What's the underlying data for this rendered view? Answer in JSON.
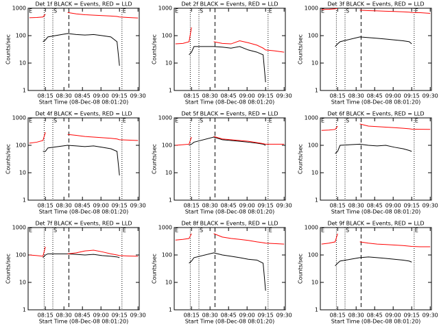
{
  "chart_data": [
    {
      "type": "line",
      "title": "Det 1f BLACK = Events, RED = LLD",
      "x_label": "Start Time (08-Dec-08 08:01:20)",
      "y_label": "Counts/sec",
      "log_y": true,
      "xlim": [
        481,
        571
      ],
      "ylim": [
        1,
        1000
      ],
      "xticks": [
        {
          "value": 495,
          "label": "08:15"
        },
        {
          "value": 510,
          "label": "08:30"
        },
        {
          "value": 525,
          "label": "08:45"
        },
        {
          "value": 540,
          "label": "09:00"
        },
        {
          "value": 555,
          "label": "09:15"
        },
        {
          "value": 570,
          "label": "09:30"
        }
      ],
      "yticks": [
        1,
        10,
        100,
        1000
      ],
      "x": [
        482,
        488,
        493,
        495,
        497,
        513,
        520,
        527,
        534,
        541,
        548,
        553,
        555,
        562,
        570
      ],
      "series": [
        {
          "color": "#000000",
          "values": [
            null,
            null,
            60,
            70,
            90,
            120,
            110,
            105,
            110,
            100,
            90,
            60,
            8,
            null,
            null
          ]
        },
        {
          "color": "#ff0000",
          "values": [
            450,
            460,
            480,
            600,
            null,
            700,
            620,
            580,
            560,
            540,
            520,
            500,
            480,
            460,
            440
          ]
        }
      ],
      "vlines": [
        494,
        501,
        514,
        557
      ],
      "vline_styles": [
        "dotted",
        "dotted",
        "dashed",
        "dotted"
      ],
      "annotations": [
        {
          "text": "E",
          "x": 481
        },
        {
          "text": "S",
          "x": 501
        },
        {
          "text": "E",
          "x": 557
        }
      ]
    },
    {
      "type": "line",
      "title": "Det 2f BLACK = Events, RED = LLD",
      "x_label": "Start Time (08-Dec-08 08:01:20)",
      "y_label": "Counts/sec",
      "log_y": true,
      "xlim": [
        481,
        571
      ],
      "ylim": [
        1,
        1000
      ],
      "xticks": [
        {
          "value": 495,
          "label": "08:15"
        },
        {
          "value": 510,
          "label": "08:30"
        },
        {
          "value": 525,
          "label": "08:45"
        },
        {
          "value": 540,
          "label": "09:00"
        },
        {
          "value": 555,
          "label": "09:15"
        },
        {
          "value": 570,
          "label": "09:30"
        }
      ],
      "yticks": [
        1,
        10,
        100,
        1000
      ],
      "x": [
        482,
        488,
        493,
        495,
        497,
        513,
        520,
        527,
        534,
        541,
        548,
        553,
        555,
        562,
        570
      ],
      "series": [
        {
          "color": "#000000",
          "values": [
            null,
            null,
            20,
            25,
            40,
            40,
            38,
            35,
            40,
            30,
            25,
            20,
            2,
            null,
            null
          ]
        },
        {
          "color": "#ff0000",
          "values": [
            50,
            52,
            60,
            200,
            null,
            60,
            52,
            50,
            65,
            55,
            45,
            35,
            30,
            28,
            25
          ]
        }
      ],
      "vlines": [
        494,
        501,
        514,
        557
      ],
      "vline_styles": [
        "dotted",
        "dotted",
        "dashed",
        "dotted"
      ],
      "annotations": [
        {
          "text": "E",
          "x": 481
        },
        {
          "text": "S",
          "x": 501
        },
        {
          "text": "E",
          "x": 557
        }
      ]
    },
    {
      "type": "line",
      "title": "Det 3f BLACK = Events, RED = LLD",
      "x_label": "Start Time (08-Dec-08 08:01:20)",
      "y_label": "Counts/sec",
      "log_y": true,
      "xlim": [
        481,
        571
      ],
      "ylim": [
        1,
        1000
      ],
      "xticks": [
        {
          "value": 495,
          "label": "08:15"
        },
        {
          "value": 510,
          "label": "08:30"
        },
        {
          "value": 525,
          "label": "08:45"
        },
        {
          "value": 540,
          "label": "09:00"
        },
        {
          "value": 555,
          "label": "09:15"
        },
        {
          "value": 570,
          "label": "09:30"
        }
      ],
      "yticks": [
        1,
        10,
        100,
        1000
      ],
      "x": [
        482,
        488,
        493,
        495,
        497,
        513,
        520,
        527,
        534,
        541,
        548,
        553,
        555,
        562,
        570
      ],
      "series": [
        {
          "color": "#000000",
          "values": [
            null,
            null,
            40,
            50,
            60,
            90,
            85,
            80,
            75,
            70,
            65,
            60,
            50,
            null,
            null
          ]
        },
        {
          "color": "#ff0000",
          "values": [
            900,
            920,
            950,
            1000,
            null,
            850,
            820,
            800,
            780,
            760,
            740,
            720,
            700,
            690,
            650
          ]
        }
      ],
      "vlines": [
        494,
        501,
        514,
        557
      ],
      "vline_styles": [
        "dotted",
        "dotted",
        "dashed",
        "dotted"
      ],
      "annotations": [
        {
          "text": "E",
          "x": 481
        },
        {
          "text": "S",
          "x": 501
        },
        {
          "text": "E",
          "x": 557
        }
      ]
    },
    {
      "type": "line",
      "title": "Det 4f BLACK = Events, RED = LLD",
      "x_label": "Start Time (08-Dec-08 08:01:20)",
      "y_label": "Counts/sec",
      "log_y": true,
      "xlim": [
        481,
        571
      ],
      "ylim": [
        1,
        1000
      ],
      "xticks": [
        {
          "value": 495,
          "label": "08:15"
        },
        {
          "value": 510,
          "label": "08:30"
        },
        {
          "value": 525,
          "label": "08:45"
        },
        {
          "value": 540,
          "label": "09:00"
        },
        {
          "value": 555,
          "label": "09:15"
        },
        {
          "value": 570,
          "label": "09:30"
        }
      ],
      "yticks": [
        1,
        10,
        100,
        1000
      ],
      "x": [
        482,
        488,
        493,
        495,
        497,
        513,
        520,
        527,
        534,
        541,
        548,
        553,
        555,
        562,
        570
      ],
      "series": [
        {
          "color": "#000000",
          "values": [
            null,
            null,
            60,
            60,
            80,
            100,
            95,
            90,
            95,
            85,
            75,
            60,
            8,
            null,
            null
          ]
        },
        {
          "color": "#ff0000",
          "values": [
            120,
            130,
            150,
            300,
            null,
            250,
            230,
            210,
            200,
            190,
            180,
            170,
            160,
            155,
            150
          ]
        }
      ],
      "vlines": [
        494,
        501,
        514,
        557
      ],
      "vline_styles": [
        "dotted",
        "dotted",
        "dashed",
        "dotted"
      ],
      "annotations": [
        {
          "text": "E",
          "x": 481
        },
        {
          "text": "S",
          "x": 501
        },
        {
          "text": "E",
          "x": 557
        }
      ]
    },
    {
      "type": "line",
      "title": "Det 5f BLACK = Events, RED = LLD",
      "x_label": "Start Time (08-Dec-08 08:01:20)",
      "y_label": "Counts/sec",
      "log_y": true,
      "xlim": [
        481,
        571
      ],
      "ylim": [
        1,
        1000
      ],
      "xticks": [
        {
          "value": 495,
          "label": "08:15"
        },
        {
          "value": 510,
          "label": "08:30"
        },
        {
          "value": 525,
          "label": "08:45"
        },
        {
          "value": 540,
          "label": "09:00"
        },
        {
          "value": 555,
          "label": "09:15"
        },
        {
          "value": 570,
          "label": "09:30"
        }
      ],
      "yticks": [
        1,
        10,
        100,
        1000
      ],
      "x": [
        482,
        488,
        493,
        495,
        497,
        513,
        520,
        527,
        534,
        541,
        548,
        553,
        555,
        562,
        570
      ],
      "series": [
        {
          "color": "#000000",
          "values": [
            null,
            null,
            100,
            110,
            130,
            200,
            160,
            150,
            140,
            130,
            120,
            110,
            100,
            null,
            null
          ]
        },
        {
          "color": "#ff0000",
          "values": [
            100,
            105,
            110,
            200,
            null,
            210,
            170,
            160,
            150,
            140,
            125,
            115,
            110,
            110,
            110
          ]
        }
      ],
      "vlines": [
        494,
        501,
        514,
        557
      ],
      "vline_styles": [
        "dotted",
        "dotted",
        "dashed",
        "dotted"
      ],
      "annotations": [
        {
          "text": "E",
          "x": 481
        },
        {
          "text": "S",
          "x": 501
        },
        {
          "text": "E",
          "x": 557
        }
      ]
    },
    {
      "type": "line",
      "title": "Det 6f BLACK = Events, RED = LLD",
      "x_label": "Start Time (08-Dec-08 08:01:20)",
      "y_label": "Counts/sec",
      "log_y": true,
      "xlim": [
        481,
        571
      ],
      "ylim": [
        1,
        1000
      ],
      "xticks": [
        {
          "value": 495,
          "label": "08:15"
        },
        {
          "value": 510,
          "label": "08:30"
        },
        {
          "value": 525,
          "label": "08:45"
        },
        {
          "value": 540,
          "label": "09:00"
        },
        {
          "value": 555,
          "label": "09:15"
        },
        {
          "value": 570,
          "label": "09:30"
        }
      ],
      "yticks": [
        1,
        10,
        100,
        1000
      ],
      "x": [
        482,
        488,
        493,
        495,
        497,
        513,
        520,
        527,
        534,
        541,
        548,
        553,
        555,
        562,
        570
      ],
      "series": [
        {
          "color": "#000000",
          "values": [
            null,
            null,
            50,
            60,
            100,
            110,
            100,
            95,
            100,
            85,
            75,
            65,
            60,
            null,
            null
          ]
        },
        {
          "color": "#ff0000",
          "values": [
            350,
            360,
            380,
            500,
            null,
            600,
            500,
            480,
            460,
            440,
            420,
            400,
            390,
            385,
            380
          ]
        }
      ],
      "vlines": [
        494,
        501,
        514,
        557
      ],
      "vline_styles": [
        "dotted",
        "dotted",
        "dashed",
        "dotted"
      ],
      "annotations": [
        {
          "text": "E",
          "x": 481
        },
        {
          "text": "S",
          "x": 501
        },
        {
          "text": "E",
          "x": 557
        }
      ]
    },
    {
      "type": "line",
      "title": "Det 7f BLACK = Events, RED = LLD",
      "x_label": "Start Time (08-Dec-08 08:01:20)",
      "y_label": "Counts/sec",
      "log_y": true,
      "xlim": [
        481,
        571
      ],
      "ylim": [
        1,
        1000
      ],
      "xticks": [
        {
          "value": 495,
          "label": "08:15"
        },
        {
          "value": 510,
          "label": "08:30"
        },
        {
          "value": 525,
          "label": "08:45"
        },
        {
          "value": 540,
          "label": "09:00"
        },
        {
          "value": 555,
          "label": "09:15"
        },
        {
          "value": 570,
          "label": "09:30"
        }
      ],
      "yticks": [
        1,
        10,
        100,
        1000
      ],
      "x": [
        482,
        488,
        493,
        495,
        497,
        513,
        520,
        527,
        534,
        541,
        548,
        553,
        555,
        562,
        570
      ],
      "series": [
        {
          "color": "#000000",
          "values": [
            null,
            null,
            80,
            100,
            110,
            110,
            105,
            100,
            105,
            95,
            90,
            85,
            80,
            null,
            null
          ]
        },
        {
          "color": "#ff0000",
          "values": [
            100,
            95,
            90,
            200,
            null,
            110,
            120,
            140,
            150,
            130,
            110,
            100,
            95,
            92,
            90
          ]
        }
      ],
      "vlines": [
        494,
        501,
        514,
        557
      ],
      "vline_styles": [
        "dotted",
        "dotted",
        "dashed",
        "dotted"
      ],
      "annotations": [
        {
          "text": "E",
          "x": 481
        },
        {
          "text": "S",
          "x": 501
        },
        {
          "text": "E",
          "x": 557
        }
      ]
    },
    {
      "type": "line",
      "title": "Det 8f BLACK = Events, RED = LLD",
      "x_label": "Start Time (08-Dec-08 08:01:20)",
      "y_label": "Counts/sec",
      "log_y": true,
      "xlim": [
        481,
        571
      ],
      "ylim": [
        1,
        1000
      ],
      "xticks": [
        {
          "value": 495,
          "label": "08:15"
        },
        {
          "value": 510,
          "label": "08:30"
        },
        {
          "value": 525,
          "label": "08:45"
        },
        {
          "value": 540,
          "label": "09:00"
        },
        {
          "value": 555,
          "label": "09:15"
        },
        {
          "value": 570,
          "label": "09:30"
        }
      ],
      "yticks": [
        1,
        10,
        100,
        1000
      ],
      "x": [
        482,
        488,
        493,
        495,
        497,
        513,
        520,
        527,
        534,
        541,
        548,
        553,
        555,
        562,
        570
      ],
      "series": [
        {
          "color": "#000000",
          "values": [
            null,
            null,
            50,
            60,
            80,
            120,
            100,
            90,
            80,
            70,
            65,
            50,
            5,
            null,
            null
          ]
        },
        {
          "color": "#ff0000",
          "values": [
            350,
            370,
            400,
            600,
            null,
            600,
            450,
            400,
            370,
            340,
            300,
            280,
            270,
            260,
            250
          ]
        }
      ],
      "vlines": [
        494,
        501,
        514,
        557
      ],
      "vline_styles": [
        "dotted",
        "dotted",
        "dashed",
        "dotted"
      ],
      "annotations": [
        {
          "text": "E",
          "x": 481
        },
        {
          "text": "S",
          "x": 501
        },
        {
          "text": "E",
          "x": 557
        }
      ]
    },
    {
      "type": "line",
      "title": "Det 9f BLACK = Events, RED = LLD",
      "x_label": "Start Time (08-Dec-08 08:01:20)",
      "y_label": "Counts/sec",
      "log_y": true,
      "xlim": [
        481,
        571
      ],
      "ylim": [
        1,
        1000
      ],
      "xticks": [
        {
          "value": 495,
          "label": "08:15"
        },
        {
          "value": 510,
          "label": "08:30"
        },
        {
          "value": 525,
          "label": "08:45"
        },
        {
          "value": 540,
          "label": "09:00"
        },
        {
          "value": 555,
          "label": "09:15"
        },
        {
          "value": 570,
          "label": "09:30"
        }
      ],
      "yticks": [
        1,
        10,
        100,
        1000
      ],
      "x": [
        482,
        488,
        493,
        495,
        497,
        513,
        520,
        527,
        534,
        541,
        548,
        553,
        555,
        562,
        570
      ],
      "series": [
        {
          "color": "#000000",
          "values": [
            null,
            null,
            40,
            50,
            60,
            80,
            85,
            80,
            75,
            70,
            65,
            60,
            55,
            null,
            null
          ]
        },
        {
          "color": "#ff0000",
          "values": [
            250,
            270,
            300,
            600,
            null,
            300,
            270,
            250,
            240,
            230,
            220,
            210,
            205,
            200,
            200
          ]
        }
      ],
      "vlines": [
        494,
        501,
        514,
        557
      ],
      "vline_styles": [
        "dotted",
        "dotted",
        "dashed",
        "dotted"
      ],
      "annotations": [
        {
          "text": "E",
          "x": 481
        },
        {
          "text": "S",
          "x": 501
        },
        {
          "text": "E",
          "x": 557
        }
      ]
    }
  ]
}
